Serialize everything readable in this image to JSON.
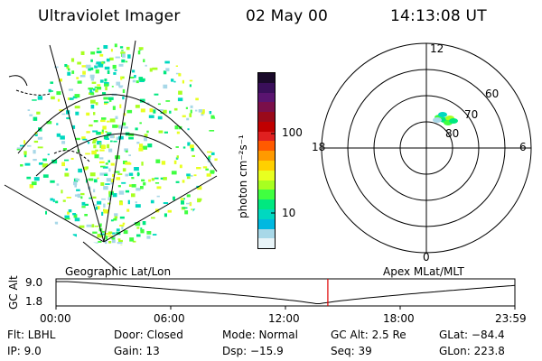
{
  "header": {
    "instrument": "Ultraviolet Imager",
    "date": "02 May 00",
    "time": "14:13:08 UT"
  },
  "colorbar": {
    "label": "photon cm⁻²s⁻¹",
    "ticks": [
      "100",
      "10"
    ],
    "colors": [
      "#1a0a2a",
      "#3a0f5a",
      "#5a1470",
      "#7a0f4a",
      "#9a0a1a",
      "#c00000",
      "#e02020",
      "#ff5a00",
      "#ff9a00",
      "#ffd000",
      "#e8ff20",
      "#a8ff20",
      "#40ff40",
      "#00e880",
      "#00d8c0",
      "#00b8e0",
      "#a8d8e8",
      "#e8f4f8"
    ]
  },
  "polar": {
    "mlt_labels": [
      "12",
      "18",
      "6",
      "0"
    ],
    "lat_labels": [
      "60",
      "70",
      "80"
    ]
  },
  "timeline": {
    "left_label": "Geographic Lat/Lon",
    "right_label": "Apex MLat/MLT",
    "axis_label": "GC Alt",
    "y_ticks": [
      "9.0",
      "1.8"
    ],
    "x_ticks": [
      "00:00",
      "06:00",
      "12:00",
      "18:00",
      "23:59"
    ],
    "marker_time": "14:13",
    "marker_color": "#e00000"
  },
  "meta": {
    "flt": "Flt: LBHL",
    "ip": "IP:  9.0",
    "door": "Door: Closed",
    "gain": "Gain: 13",
    "mode": "Mode: Normal",
    "dsp": "Dsp:  −15.9",
    "gcalt": "GC Alt: 2.5 Re",
    "seq": "Seq: 39",
    "glat": "GLat: −84.4",
    "glon": "GLon: 223.8"
  }
}
